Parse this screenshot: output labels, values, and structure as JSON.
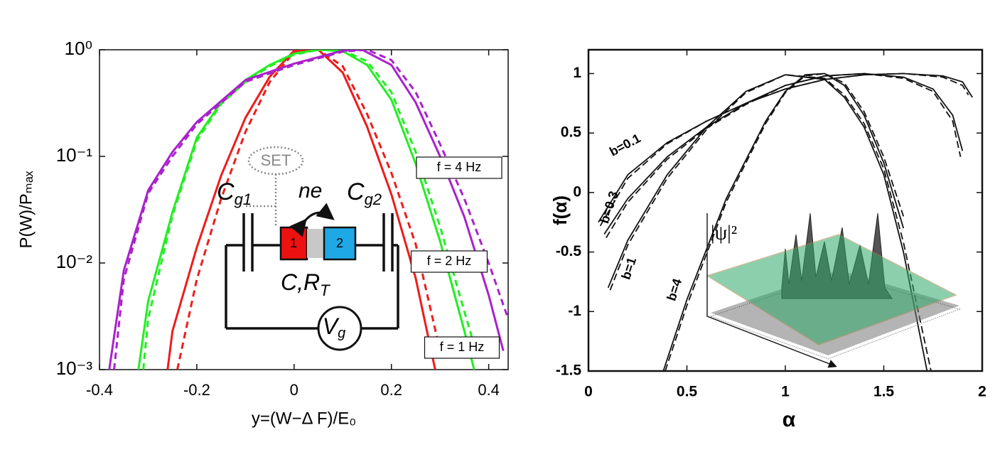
{
  "chart_data": [
    {
      "type": "line",
      "ylog": true,
      "xlabel": "y=(W−Δ F)/E₀",
      "ylabel": "P(W)/Pₘₐₓ",
      "xlim": [
        -0.4,
        0.44
      ],
      "ylim": [
        0.001,
        1
      ],
      "xticks": [
        -0.4,
        -0.2,
        0,
        0.2,
        0.4
      ],
      "yticks": [
        {
          "value": 0.001,
          "label": "10⁻³"
        },
        {
          "value": 0.01,
          "label": "10⁻²"
        },
        {
          "value": 0.1,
          "label": "10⁻¹"
        },
        {
          "value": 1,
          "label": "10⁰"
        }
      ],
      "series": [
        {
          "name": "f = 1 Hz",
          "color": "#ee1c1c",
          "x": [
            -0.26,
            -0.25,
            -0.2,
            -0.15,
            -0.1,
            -0.05,
            0,
            0.05,
            0.1,
            0.15,
            0.2,
            0.25,
            0.29
          ],
          "values": [
            0.001,
            0.0023,
            0.014,
            0.066,
            0.23,
            0.56,
            0.98,
            1,
            0.61,
            0.19,
            0.044,
            0.0072,
            0.001
          ]
        },
        {
          "color": "#ee1c1c",
          "dashed": true,
          "x": [
            -0.24,
            -0.2,
            -0.15,
            -0.1,
            -0.05,
            0,
            0.05,
            0.1,
            0.15,
            0.2,
            0.25,
            0.3
          ],
          "values": [
            0.001,
            0.007,
            0.04,
            0.17,
            0.5,
            0.95,
            1,
            0.7,
            0.25,
            0.07,
            0.015,
            0.0015
          ]
        },
        {
          "name": "f = 2 Hz",
          "color": "#22ee22",
          "x": [
            -0.32,
            -0.3,
            -0.25,
            -0.2,
            -0.15,
            -0.1,
            -0.05,
            0,
            0.05,
            0.1,
            0.15,
            0.2,
            0.25,
            0.3,
            0.35,
            0.37
          ],
          "values": [
            0.001,
            0.0044,
            0.03,
            0.15,
            0.32,
            0.52,
            0.72,
            0.92,
            1,
            0.97,
            0.72,
            0.34,
            0.085,
            0.016,
            0.0023,
            0.001
          ]
        },
        {
          "color": "#22ee22",
          "dashed": true,
          "x": [
            -0.31,
            -0.3,
            -0.25,
            -0.2,
            -0.15,
            -0.1,
            -0.05,
            0,
            0.05,
            0.1,
            0.15,
            0.2,
            0.25,
            0.3,
            0.35,
            0.38
          ],
          "values": [
            0.001,
            0.003,
            0.028,
            0.14,
            0.31,
            0.5,
            0.7,
            0.9,
            1,
            0.99,
            0.78,
            0.4,
            0.11,
            0.022,
            0.0035,
            0.0012
          ]
        },
        {
          "name": "f = 4 Hz",
          "color": "#aa22cc",
          "x": [
            -0.38,
            -0.35,
            -0.3,
            -0.25,
            -0.2,
            -0.1,
            0,
            0.1,
            0.14,
            0.2,
            0.25,
            0.3,
            0.35,
            0.4,
            0.43
          ],
          "values": [
            0.001,
            0.0085,
            0.048,
            0.11,
            0.21,
            0.52,
            0.74,
            0.98,
            1,
            0.72,
            0.32,
            0.1,
            0.027,
            0.005,
            0.0015
          ]
        },
        {
          "color": "#aa22cc",
          "dashed": true,
          "x": [
            -0.37,
            -0.35,
            -0.3,
            -0.25,
            -0.2,
            -0.1,
            0,
            0.1,
            0.15,
            0.2,
            0.25,
            0.3,
            0.35,
            0.4,
            0.44
          ],
          "values": [
            0.001,
            0.007,
            0.045,
            0.1,
            0.2,
            0.5,
            0.72,
            0.96,
            1,
            0.8,
            0.4,
            0.13,
            0.04,
            0.01,
            0.003
          ]
        }
      ]
    },
    {
      "type": "line",
      "xlabel": "α",
      "ylabel": "f(α)",
      "xlim": [
        0,
        2
      ],
      "ylim": [
        -1.5,
        1.2
      ],
      "xticks": [
        0,
        0.5,
        1,
        1.5,
        2
      ],
      "yticks": [
        -1.5,
        -1,
        -0.5,
        0,
        0.5,
        1
      ],
      "series": [
        {
          "name": "b=0.1",
          "color": "#111111",
          "x": [
            0.05,
            0.2,
            0.4,
            0.6,
            0.8,
            1.0,
            1.2,
            1.4,
            1.6,
            1.8,
            1.9,
            1.95
          ],
          "values": [
            -0.25,
            0.15,
            0.42,
            0.6,
            0.75,
            0.87,
            0.95,
            0.99,
            1.0,
            0.98,
            0.93,
            0.8
          ]
        },
        {
          "color": "#111111",
          "dashed": true,
          "x": [
            0.06,
            0.2,
            0.4,
            0.6,
            0.8,
            1.0,
            1.2,
            1.4,
            1.6,
            1.8,
            1.9,
            1.93
          ],
          "values": [
            -0.28,
            0.12,
            0.41,
            0.6,
            0.75,
            0.87,
            0.95,
            0.99,
            1.0,
            0.97,
            0.9,
            0.82
          ]
        },
        {
          "name": "b=0.3",
          "color": "#111111",
          "x": [
            0.08,
            0.2,
            0.4,
            0.6,
            0.8,
            1.0,
            1.2,
            1.4,
            1.6,
            1.75,
            1.85,
            1.9
          ],
          "values": [
            -0.35,
            -0.05,
            0.3,
            0.55,
            0.75,
            0.9,
            0.98,
            1.0,
            0.97,
            0.87,
            0.65,
            0.35
          ]
        },
        {
          "color": "#111111",
          "dashed": true,
          "x": [
            0.09,
            0.2,
            0.4,
            0.6,
            0.8,
            1.0,
            1.2,
            1.4,
            1.6,
            1.75,
            1.85,
            1.89
          ],
          "values": [
            -0.38,
            -0.08,
            0.28,
            0.54,
            0.74,
            0.9,
            0.98,
            1.0,
            0.96,
            0.85,
            0.6,
            0.3
          ]
        },
        {
          "name": "b=1",
          "color": "#111111",
          "x": [
            0.1,
            0.2,
            0.4,
            0.6,
            0.8,
            1.0,
            1.2,
            1.3,
            1.4,
            1.5,
            1.6,
            1.72
          ],
          "values": [
            -0.8,
            -0.4,
            0.15,
            0.55,
            0.85,
            0.99,
            0.95,
            0.8,
            0.55,
            0.15,
            -0.5,
            -1.5
          ]
        },
        {
          "color": "#111111",
          "dashed": true,
          "x": [
            0.11,
            0.2,
            0.4,
            0.6,
            0.8,
            1.0,
            1.2,
            1.3,
            1.4,
            1.5,
            1.6,
            1.74
          ],
          "values": [
            -0.82,
            -0.44,
            0.12,
            0.53,
            0.84,
            0.99,
            0.96,
            0.82,
            0.58,
            0.2,
            -0.42,
            -1.5
          ]
        },
        {
          "name": "b=4",
          "color": "#111111",
          "x": [
            0.38,
            0.5,
            0.7,
            0.9,
            1.0,
            1.1,
            1.2,
            1.3,
            1.4,
            1.5,
            1.6
          ],
          "values": [
            -1.5,
            -0.9,
            -0.05,
            0.6,
            0.85,
            0.99,
            1.0,
            0.9,
            0.65,
            0.25,
            -0.3
          ]
        },
        {
          "color": "#111111",
          "dashed": true,
          "x": [
            0.39,
            0.5,
            0.7,
            0.9,
            1.0,
            1.1,
            1.2,
            1.3,
            1.4,
            1.5,
            1.6
          ],
          "values": [
            -1.5,
            -0.95,
            -0.08,
            0.58,
            0.84,
            0.98,
            1.0,
            0.92,
            0.68,
            0.3,
            -0.2
          ]
        }
      ]
    }
  ],
  "circuit": {
    "set": "SET",
    "cg1": [
      "C",
      "g1"
    ],
    "ne": "ne",
    "cg2": [
      "C",
      "g2"
    ],
    "box1": "1",
    "box2": "2",
    "crt": [
      "C,R",
      "T"
    ],
    "vg": [
      "V",
      "g"
    ]
  },
  "inset3d": {
    "psi": "|ψ|²"
  }
}
